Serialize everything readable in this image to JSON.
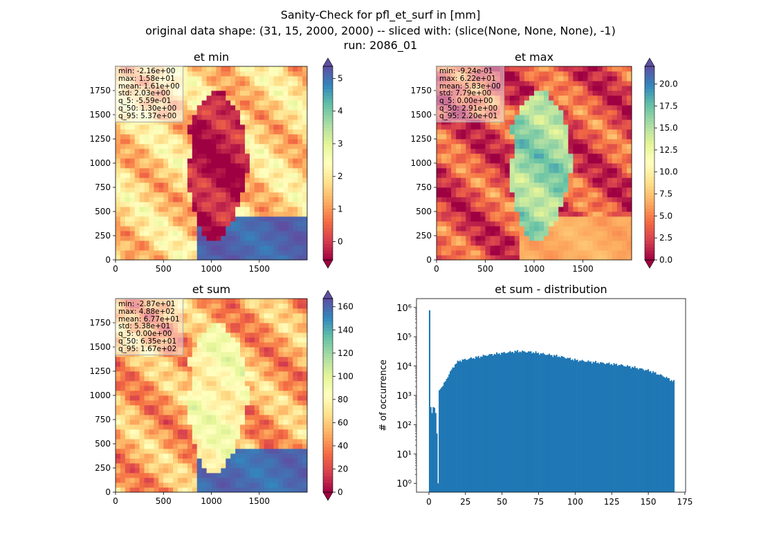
{
  "figure": {
    "title_lines": [
      "Sanity-Check for pfl_et_surf in [mm]",
      "original data shape: (31, 15, 2000, 2000) -- sliced with: (slice(None, None, None), -1)",
      "run: 2086_01"
    ]
  },
  "colors": {
    "hist": "#1f77b4",
    "colormap": "Spectral"
  },
  "chart_data": [
    {
      "type": "heatmap",
      "title": "et min",
      "colormap": "Spectral",
      "xlim": [
        0,
        2000
      ],
      "ylim": [
        0,
        2000
      ],
      "xticks": [
        0,
        500,
        1000,
        1500
      ],
      "yticks": [
        0,
        250,
        500,
        750,
        1000,
        1250,
        1500,
        1750
      ],
      "colorbar": {
        "min": -0.559,
        "max": 5.37,
        "extend": "both",
        "ticks": [
          0,
          1,
          2,
          3,
          4,
          5
        ]
      },
      "stats": [
        "min: -2.16e+00",
        "max: 1.58e+01",
        "mean: 1.61e+00",
        "std: 2.03e+00",
        "q_5: -5.59e-01",
        "q_50: 1.30e+00",
        "q_95: 5.37e+00"
      ],
      "pattern": {
        "outside": 0.38,
        "inside": 0.04,
        "south_band": 0.96
      }
    },
    {
      "type": "heatmap",
      "title": "et max",
      "colormap": "Spectral",
      "xlim": [
        0,
        2000
      ],
      "ylim": [
        0,
        2000
      ],
      "xticks": [
        0,
        500,
        1000,
        1500
      ],
      "yticks": [
        0,
        250,
        500,
        750,
        1000,
        1250,
        1500,
        1750
      ],
      "colorbar": {
        "min": 0.0,
        "max": 22.0,
        "extend": "both",
        "ticks": [
          0.0,
          2.5,
          5.0,
          7.5,
          10.0,
          12.5,
          15.0,
          17.5,
          20.0
        ]
      },
      "stats": [
        "min: -9.24e-01",
        "max: 6.22e+01",
        "mean: 5.83e+00",
        "std: 7.79e+00",
        "q_5: 0.00e+00",
        "q_50: 2.91e+00",
        "q_95: 2.20e+01"
      ],
      "pattern": {
        "outside": 0.14,
        "inside": 0.72,
        "south_band": 0.3
      }
    },
    {
      "type": "heatmap",
      "title": "et sum",
      "colormap": "Spectral",
      "xlim": [
        0,
        2000
      ],
      "ylim": [
        0,
        2000
      ],
      "xticks": [
        0,
        500,
        1000,
        1500
      ],
      "yticks": [
        0,
        250,
        500,
        750,
        1000,
        1250,
        1500,
        1750
      ],
      "colorbar": {
        "min": 0.0,
        "max": 167.0,
        "extend": "both",
        "ticks": [
          0,
          20,
          40,
          60,
          80,
          100,
          120,
          140,
          160
        ]
      },
      "stats": [
        "min: -2.87e+01",
        "max: 4.88e+02",
        "mean: 6.77e+01",
        "std: 5.38e+01",
        "q_5: 0.00e+00",
        "q_50: 6.35e+01",
        "q_95: 1.67e+02"
      ],
      "pattern": {
        "outside": 0.3,
        "inside": 0.5,
        "south_band": 0.95
      }
    },
    {
      "type": "bar",
      "title": "et sum - distribution",
      "xlabel": "",
      "ylabel": "# of occurrence",
      "yscale": "log",
      "xlim": [
        -8.5,
        175.5
      ],
      "ylim": [
        0.5,
        2000000
      ],
      "xticks": [
        0,
        25,
        50,
        75,
        100,
        125,
        150,
        175
      ],
      "yticks": [
        1,
        10,
        100,
        1000,
        10000,
        100000,
        1000000
      ],
      "ytick_labels": [
        "10⁰",
        "10¹",
        "10²",
        "10³",
        "10⁴",
        "10⁵",
        "10⁶"
      ],
      "bin_width": 0.835,
      "profile": [
        [
          0,
          800000
        ],
        [
          0.84,
          400
        ],
        [
          1.67,
          250
        ],
        [
          2.5,
          400
        ],
        [
          3.34,
          380
        ],
        [
          4.17,
          250
        ],
        [
          5.0,
          50
        ],
        [
          5.84,
          1
        ],
        [
          6.67,
          1500
        ],
        [
          8,
          1800
        ],
        [
          10,
          2500
        ],
        [
          12,
          4000
        ],
        [
          14,
          6000
        ],
        [
          16,
          9000
        ],
        [
          18,
          12000
        ],
        [
          20,
          15000
        ],
        [
          25,
          17000
        ],
        [
          30,
          19000
        ],
        [
          40,
          24000
        ],
        [
          50,
          28000
        ],
        [
          60,
          32000
        ],
        [
          70,
          30000
        ],
        [
          80,
          25000
        ],
        [
          90,
          21000
        ],
        [
          100,
          16000
        ],
        [
          110,
          14000
        ],
        [
          120,
          12500
        ],
        [
          130,
          11000
        ],
        [
          140,
          9000
        ],
        [
          150,
          7000
        ],
        [
          160,
          4500
        ],
        [
          167,
          3000
        ]
      ]
    }
  ]
}
